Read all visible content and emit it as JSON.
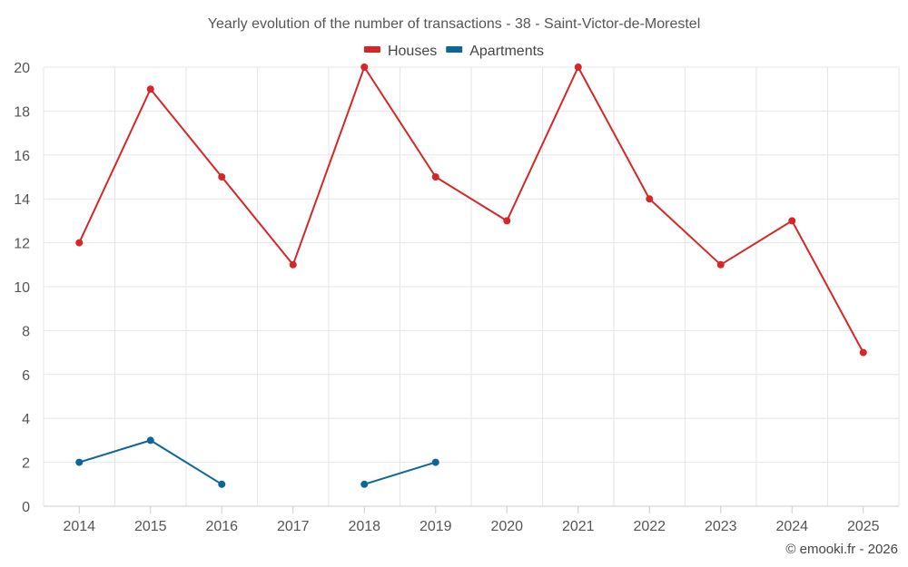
{
  "chart_data": {
    "type": "line",
    "title": "Yearly evolution of the number of transactions - 38 - Saint-Victor-de-Morestel",
    "categories": [
      "2014",
      "2015",
      "2016",
      "2017",
      "2018",
      "2019",
      "2020",
      "2021",
      "2022",
      "2023",
      "2024",
      "2025"
    ],
    "ylim": [
      0,
      20
    ],
    "yticks": [
      0,
      2,
      4,
      6,
      8,
      10,
      12,
      14,
      16,
      18,
      20
    ],
    "grid": true,
    "legend_position": "top-center",
    "series": [
      {
        "name": "Houses",
        "color": "#d62728",
        "values": [
          12,
          19,
          15,
          11,
          20,
          15,
          13,
          20,
          14,
          11,
          13,
          7
        ]
      },
      {
        "name": "Apartments",
        "color": "#0e6698",
        "values": [
          2,
          3,
          1,
          null,
          1,
          2,
          null,
          null,
          null,
          null,
          null,
          null
        ]
      }
    ],
    "credit": "© emooki.fr - 2026"
  }
}
